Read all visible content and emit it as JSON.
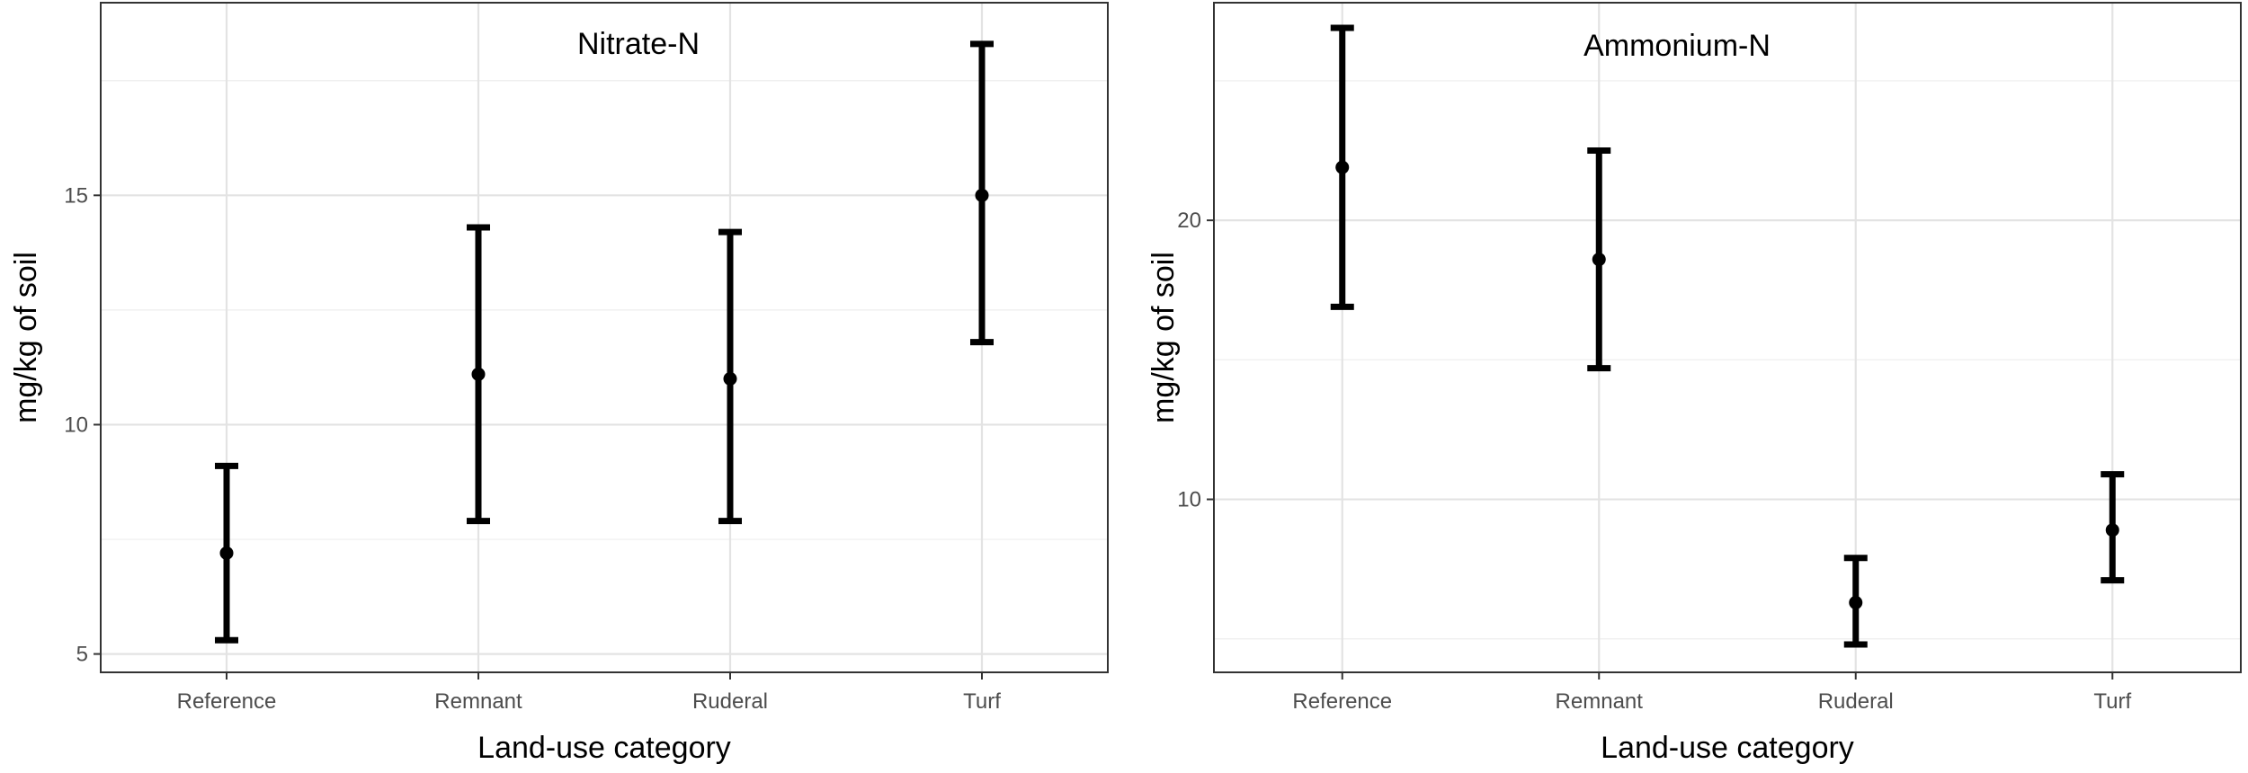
{
  "chart_data": [
    {
      "type": "errorbar",
      "title": "Nitrate-N",
      "xlabel": "Land-use category",
      "ylabel": "mg/kg of soil",
      "categories": [
        "Reference",
        "Remnant",
        "Ruderal",
        "Turf"
      ],
      "values": [
        7.2,
        11.1,
        11.0,
        15.0
      ],
      "lower": [
        5.3,
        7.9,
        7.9,
        11.8
      ],
      "upper": [
        9.1,
        14.3,
        14.2,
        18.3
      ],
      "ylim": [
        4.6,
        19.2
      ],
      "yticks": [
        5,
        10,
        15
      ],
      "grid": true
    },
    {
      "type": "errorbar",
      "title": "Ammonium-N",
      "xlabel": "Land-use category",
      "ylabel": "mg/kg of soil",
      "categories": [
        "Reference",
        "Remnant",
        "Ruderal",
        "Turf"
      ],
      "values": [
        21.9,
        18.6,
        6.3,
        8.9
      ],
      "lower": [
        16.9,
        14.7,
        4.8,
        7.1
      ],
      "upper": [
        26.9,
        22.5,
        7.9,
        10.9
      ],
      "ylim": [
        3.8,
        27.8
      ],
      "yticks": [
        10,
        20
      ],
      "grid": true
    }
  ]
}
